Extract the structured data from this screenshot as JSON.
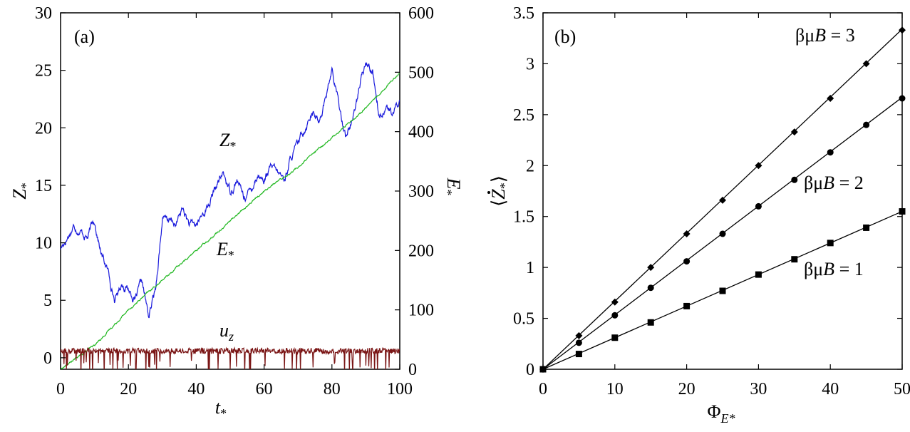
{
  "figure": {
    "panel_a_label": "(a)",
    "panel_b_label": "(b)"
  },
  "chart_data": [
    {
      "type": "line",
      "panel": "(a)",
      "xlabel": "t*",
      "xlabel_base": "t",
      "xlabel_sub": "*",
      "ylabel_left": "Z*",
      "ylabel_left_base": "Z",
      "ylabel_left_sub": "*",
      "ylabel_right": "E*",
      "ylabel_right_base": "E",
      "ylabel_right_sub": "*",
      "xlim": [
        0,
        100
      ],
      "ylim_left": [
        -1,
        30
      ],
      "ylim_right": [
        0,
        600
      ],
      "xticks": [
        0,
        20,
        40,
        60,
        80,
        100
      ],
      "yticks_left": [
        0,
        5,
        10,
        15,
        20,
        25,
        30
      ],
      "yticks_right": [
        0,
        100,
        200,
        300,
        400,
        500,
        600
      ],
      "grid": false,
      "series": [
        {
          "name": "Z*",
          "name_base": "Z",
          "name_sub": "*",
          "color": "#1a1adc",
          "axis": "left",
          "noisy": true,
          "noise": 0.45,
          "x": [
            0,
            2,
            4,
            6,
            8,
            10,
            12,
            14,
            16,
            18,
            20,
            22,
            24,
            26,
            28,
            30,
            32,
            34,
            36,
            38,
            40,
            42,
            44,
            46,
            48,
            50,
            52,
            54,
            56,
            58,
            60,
            62,
            64,
            66,
            68,
            70,
            72,
            74,
            76,
            78,
            80,
            82,
            84,
            86,
            88,
            90,
            92,
            94,
            96,
            98,
            100
          ],
          "y": [
            9.5,
            10.5,
            11.5,
            11.0,
            10.5,
            12.0,
            9.0,
            7.5,
            5.0,
            6.5,
            6.0,
            5.0,
            6.5,
            3.5,
            6.0,
            12.0,
            12.0,
            11.5,
            13.0,
            11.5,
            11.5,
            12.5,
            13.5,
            15.0,
            16.0,
            14.5,
            15.5,
            14.0,
            14.5,
            16.0,
            15.5,
            16.5,
            16.0,
            15.5,
            17.5,
            18.5,
            20.0,
            21.5,
            20.5,
            22.5,
            25.0,
            22.0,
            19.5,
            20.5,
            23.5,
            25.5,
            25.0,
            21.0,
            22.0,
            21.0,
            22.5
          ]
        },
        {
          "name": "E*",
          "name_base": "E",
          "name_sub": "*",
          "color": "#22b822",
          "axis": "right",
          "noisy": true,
          "noise": 2.0,
          "x": [
            0,
            10,
            20,
            30,
            40,
            50,
            60,
            70,
            80,
            90,
            100
          ],
          "y": [
            0,
            40,
            100,
            150,
            200,
            250,
            300,
            340,
            390,
            440,
            500
          ]
        },
        {
          "name": "uz",
          "name_base": "u",
          "name_sub": "z",
          "color": "#7a1515",
          "axis": "left",
          "spiky": true,
          "x": [
            0,
            100
          ],
          "y": [
            0.6,
            0.6
          ]
        }
      ]
    },
    {
      "type": "scatter",
      "panel": "(b)",
      "xlabel": "ΦE*",
      "xlabel_base": "Φ",
      "xlabel_sub": "E*",
      "ylabel": "⟨Ż*⟩",
      "ylabel_base": "Z",
      "ylabel_sub": "*",
      "xlim": [
        0,
        50
      ],
      "ylim": [
        0,
        3.5
      ],
      "xticks": [
        0,
        10,
        20,
        30,
        40,
        50
      ],
      "yticks": [
        0,
        0.5,
        1,
        1.5,
        2,
        2.5,
        3,
        3.5
      ],
      "grid": false,
      "series": [
        {
          "name": "βμB = 3",
          "label_prefix": "βμ",
          "label_var": "B",
          "label_rest": " = 3",
          "marker": "diamond",
          "fit_slope": 0.0668,
          "x": [
            0,
            5,
            10,
            15,
            20,
            25,
            30,
            35,
            40,
            45,
            50
          ],
          "y": [
            0,
            0.33,
            0.66,
            1.0,
            1.33,
            1.66,
            2.0,
            2.33,
            2.66,
            3.0,
            3.33
          ]
        },
        {
          "name": "βμB = 2",
          "label_prefix": "βμ",
          "label_var": "B",
          "label_rest": " = 2",
          "marker": "circle",
          "fit_slope": 0.0534,
          "x": [
            0,
            5,
            10,
            15,
            20,
            25,
            30,
            35,
            40,
            45,
            50
          ],
          "y": [
            0,
            0.26,
            0.53,
            0.8,
            1.06,
            1.33,
            1.6,
            1.86,
            2.13,
            2.4,
            2.66
          ]
        },
        {
          "name": "βμB = 1",
          "label_prefix": "βμ",
          "label_var": "B",
          "label_rest": " = 1",
          "marker": "square",
          "fit_slope": 0.031,
          "x": [
            0,
            5,
            10,
            15,
            20,
            25,
            30,
            35,
            40,
            45,
            50
          ],
          "y": [
            0,
            0.15,
            0.31,
            0.46,
            0.62,
            0.77,
            0.93,
            1.08,
            1.24,
            1.39,
            1.55
          ]
        }
      ]
    }
  ]
}
